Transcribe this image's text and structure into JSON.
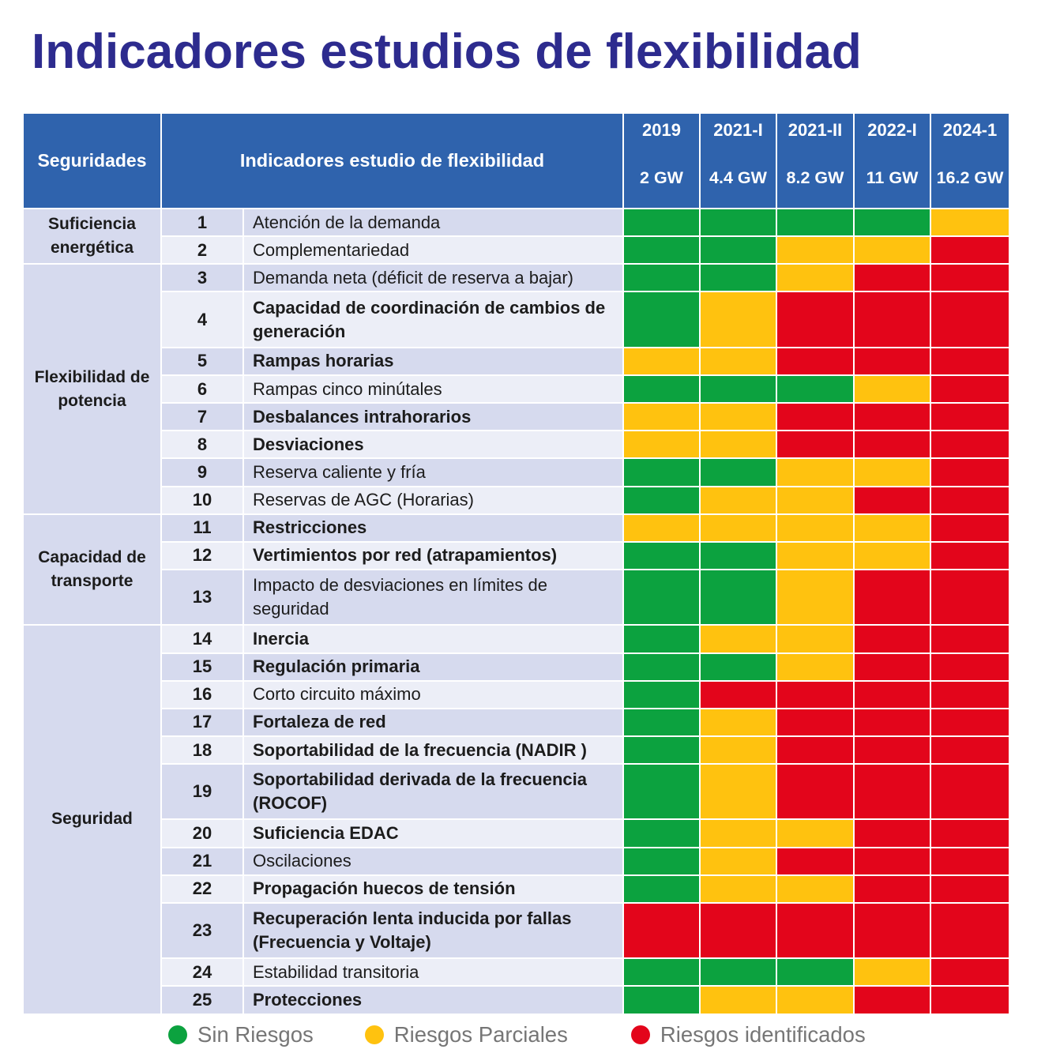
{
  "chart_data": {
    "type": "heatmap",
    "title": "Indicadores estudios de flexibilidad",
    "group_header": "Seguridades",
    "indicator_header": "Indicadores estudio de flexibilidad",
    "columns": [
      {
        "label": "2019",
        "capacity": "2 GW"
      },
      {
        "label": "2021-I",
        "capacity": "4.4 GW"
      },
      {
        "label": "2021-II",
        "capacity": "8.2 GW"
      },
      {
        "label": "2022-I",
        "capacity": "11 GW"
      },
      {
        "label": "2024-1",
        "capacity": "16.2 GW"
      }
    ],
    "legend_placement": "bottom",
    "legend": [
      {
        "label": "Sin Riesgos",
        "level": 0,
        "color": "#0ca23f"
      },
      {
        "label": "Riesgos Parciales",
        "level": 1,
        "color": "#ffc20f"
      },
      {
        "label": "Riesgos identificados",
        "level": 2,
        "color": "#e3051b"
      }
    ],
    "groups": [
      {
        "name": "Suficiencia energética",
        "indicators": [
          {
            "number": "1",
            "name": "Atención de la demanda",
            "emphasis": false,
            "values": [
              0,
              0,
              0,
              0,
              1
            ]
          },
          {
            "number": "2",
            "name": "Complementariedad",
            "emphasis": false,
            "values": [
              0,
              0,
              1,
              1,
              2
            ]
          }
        ]
      },
      {
        "name": "Flexibilidad de potencia",
        "indicators": [
          {
            "number": "3",
            "name": "Demanda neta (déficit de reserva a bajar)",
            "emphasis": false,
            "values": [
              0,
              0,
              1,
              2,
              2
            ]
          },
          {
            "number": "4",
            "name": "Capacidad de coordinación de cambios de generación",
            "emphasis": true,
            "values": [
              0,
              1,
              2,
              2,
              2
            ]
          },
          {
            "number": "5",
            "name": "Rampas horarias",
            "emphasis": true,
            "values": [
              1,
              1,
              2,
              2,
              2
            ]
          },
          {
            "number": "6",
            "name": "Rampas cinco minútales",
            "emphasis": false,
            "values": [
              0,
              0,
              0,
              1,
              2
            ]
          },
          {
            "number": "7",
            "name": "Desbalances intrahorarios",
            "emphasis": true,
            "values": [
              1,
              1,
              2,
              2,
              2
            ]
          },
          {
            "number": "8",
            "name": "Desviaciones",
            "emphasis": true,
            "values": [
              1,
              1,
              2,
              2,
              2
            ]
          },
          {
            "number": "9",
            "name": "Reserva caliente y fría",
            "emphasis": false,
            "values": [
              0,
              0,
              1,
              1,
              2
            ]
          },
          {
            "number": "10",
            "name": "Reservas de AGC (Horarias)",
            "emphasis": false,
            "values": [
              0,
              1,
              1,
              2,
              2
            ]
          }
        ]
      },
      {
        "name": "Capacidad de transporte",
        "indicators": [
          {
            "number": "11",
            "name": "Restricciones",
            "emphasis": true,
            "values": [
              1,
              1,
              1,
              1,
              2
            ]
          },
          {
            "number": "12",
            "name": "Vertimientos por red (atrapamientos)",
            "emphasis": true,
            "values": [
              0,
              0,
              1,
              1,
              2
            ]
          },
          {
            "number": "13",
            "name": "Impacto de desviaciones en límites de seguridad",
            "emphasis": false,
            "values": [
              0,
              0,
              1,
              2,
              2
            ]
          }
        ]
      },
      {
        "name": "Seguridad",
        "indicators": [
          {
            "number": "14",
            "name": "Inercia",
            "emphasis": true,
            "values": [
              0,
              1,
              1,
              2,
              2
            ]
          },
          {
            "number": "15",
            "name": "Regulación primaria",
            "emphasis": true,
            "values": [
              0,
              0,
              1,
              2,
              2
            ]
          },
          {
            "number": "16",
            "name": "Corto circuito máximo",
            "emphasis": false,
            "values": [
              0,
              2,
              2,
              2,
              2
            ]
          },
          {
            "number": "17",
            "name": "Fortaleza de red",
            "emphasis": true,
            "values": [
              0,
              1,
              2,
              2,
              2
            ]
          },
          {
            "number": "18",
            "name": "Soportabilidad de la frecuencia (NADIR )",
            "emphasis": true,
            "values": [
              0,
              1,
              2,
              2,
              2
            ]
          },
          {
            "number": "19",
            "name": "Soportabilidad derivada de la frecuencia (ROCOF)",
            "emphasis": true,
            "values": [
              0,
              1,
              2,
              2,
              2
            ]
          },
          {
            "number": "20",
            "name": "Suficiencia EDAC",
            "emphasis": true,
            "values": [
              0,
              1,
              1,
              2,
              2
            ]
          },
          {
            "number": "21",
            "name": "Oscilaciones",
            "emphasis": false,
            "values": [
              0,
              1,
              2,
              2,
              2
            ]
          },
          {
            "number": "22",
            "name": "Propagación huecos de tensión",
            "emphasis": true,
            "values": [
              0,
              1,
              1,
              2,
              2
            ]
          },
          {
            "number": "23",
            "name": "Recuperación lenta inducida por fallas (Frecuencia y Voltaje)",
            "emphasis": true,
            "values": [
              2,
              2,
              2,
              2,
              2
            ]
          },
          {
            "number": "24",
            "name": "Estabilidad transitoria",
            "emphasis": false,
            "values": [
              0,
              0,
              0,
              1,
              2
            ]
          },
          {
            "number": "25",
            "name": "Protecciones",
            "emphasis": true,
            "values": [
              0,
              1,
              1,
              2,
              2
            ]
          }
        ]
      }
    ]
  }
}
